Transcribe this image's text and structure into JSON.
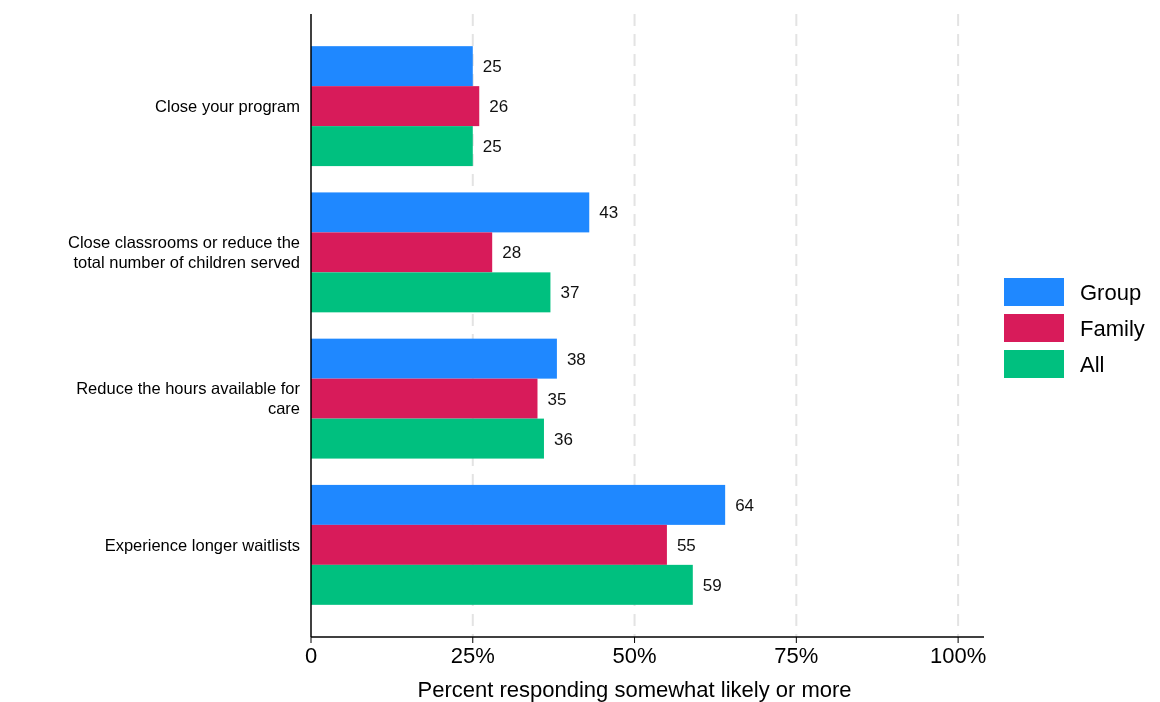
{
  "chart_data": {
    "type": "bar",
    "orientation": "horizontal",
    "xlabel": "Percent responding somewhat likely or more",
    "categories": [
      "Close your program",
      "Close classrooms or reduce the total number of children served",
      "Reduce the hours available for care",
      "Experience longer waitlists"
    ],
    "series": [
      {
        "name": "Group",
        "color": "#1f88ff",
        "values": [
          25,
          43,
          38,
          64
        ]
      },
      {
        "name": "Family",
        "color": "#d81b5a",
        "values": [
          26,
          28,
          35,
          55
        ]
      },
      {
        "name": "All",
        "color": "#00c07f",
        "values": [
          25,
          37,
          36,
          59
        ]
      }
    ],
    "xlim": [
      0,
      104
    ],
    "xticks": [
      {
        "value": 0,
        "label": "0"
      },
      {
        "value": 25,
        "label": "25%"
      },
      {
        "value": 50,
        "label": "50%"
      },
      {
        "value": 75,
        "label": "75%"
      },
      {
        "value": 100,
        "label": "100%"
      }
    ],
    "grid": "x",
    "legend": "right",
    "data_labels": true
  }
}
